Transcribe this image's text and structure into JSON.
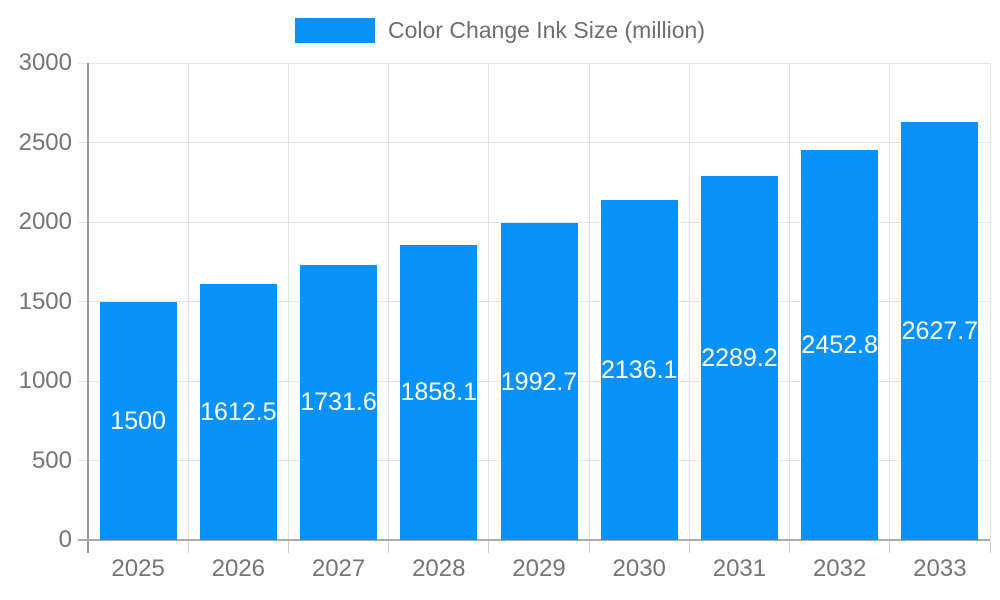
{
  "chart_data": {
    "type": "bar",
    "legend": "Color Change Ink Size (million)",
    "categories": [
      "2025",
      "2026",
      "2027",
      "2028",
      "2029",
      "2030",
      "2031",
      "2032",
      "2033"
    ],
    "values": [
      1500,
      1612.5,
      1731.6,
      1858.1,
      1992.7,
      2136.1,
      2289.2,
      2452.8,
      2627.7
    ],
    "value_labels": [
      "1500",
      "1612.5",
      "1731.6",
      "1858.1",
      "1992.7",
      "2136.1",
      "2289.2",
      "2452.8",
      "2627.7"
    ],
    "xlabel": "",
    "ylabel": "",
    "ylim": [
      0,
      3000
    ],
    "y_ticks": [
      0,
      500,
      1000,
      1500,
      2000,
      2500,
      3000
    ],
    "grid": true,
    "legend_position": "top-center",
    "value_label_position": "inside-center"
  },
  "colors": {
    "bar": "#0992FB",
    "grid": "#E4E4E4",
    "axis_line_y": "#999999",
    "axis_line_x": "#ABABAB",
    "tick": "#CCCCCC",
    "axis_label_text": "#757575",
    "value_label_text": "#FFFFFF",
    "legend_text": "#6E6E6E",
    "background": "#FFFFFF"
  }
}
